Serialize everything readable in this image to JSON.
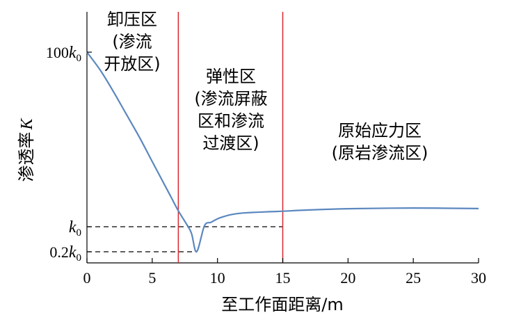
{
  "chart_data": {
    "type": "line",
    "xlabel": "至工作面距离/m",
    "ylabel": "渗透率",
    "ylabel_symbol": "K",
    "xlim": [
      0,
      30
    ],
    "x_ticks": [
      "0",
      "5",
      "10",
      "15",
      "20",
      "25",
      "30"
    ],
    "y_ticks": [
      {
        "value": 100,
        "prefix": "100",
        "symbol": "k",
        "sub": "0"
      },
      {
        "value": 1,
        "prefix": "",
        "symbol": "k",
        "sub": "0"
      },
      {
        "value": 0.2,
        "prefix": "0.2",
        "symbol": "k",
        "sub": "0"
      }
    ],
    "grid": false,
    "boundaries_x": [
      7,
      15
    ],
    "reference_lines": [
      {
        "y": 1,
        "x_end": 15
      },
      {
        "y": 0.2,
        "x_end": 8.3
      }
    ],
    "zones": [
      {
        "lines": [
          "卸压区",
          "(渗流",
          "开放区)"
        ]
      },
      {
        "lines": [
          "弹性区",
          "(渗流屏蔽",
          "区和渗流",
          "过渡区)"
        ]
      },
      {
        "lines": [
          "原始应力区",
          "(原岩渗流区)"
        ]
      }
    ],
    "series": [
      {
        "x": [
          0,
          1,
          2,
          3,
          4,
          5,
          6,
          6.5,
          7,
          7.5,
          8,
          8.4,
          9,
          9.5,
          10,
          10.5,
          11,
          11.5,
          12,
          13,
          14,
          15,
          17,
          20,
          25,
          30
        ],
        "y": [
          100,
          90,
          78,
          65,
          52,
          38,
          24,
          17,
          10,
          4,
          0.8,
          0.2,
          1.5,
          3.5,
          5.5,
          6.8,
          7.8,
          8.4,
          8.8,
          9.2,
          9.5,
          9.8,
          10.5,
          11.2,
          11.6,
          11.3
        ]
      }
    ],
    "colors": {
      "curve": "#5b87bf",
      "boundary": "#d9272e",
      "axes": "#000000"
    },
    "line_style": {
      "reference": "dashed",
      "boundary": "solid"
    }
  }
}
